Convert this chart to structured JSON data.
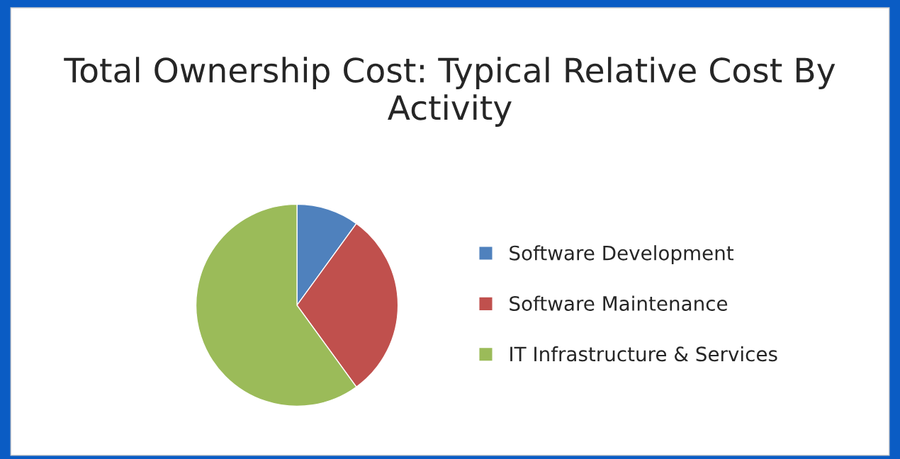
{
  "chart_data": {
    "type": "pie",
    "title": "Total Ownership Cost: Typical Relative Cost By Activity",
    "categories": [
      "Software Development",
      "Software Maintenance",
      "IT Infrastructure & Services"
    ],
    "values": [
      10,
      30,
      60
    ],
    "colors": [
      "#4f81bd",
      "#c0504d",
      "#9bbb59"
    ],
    "legend": "right"
  }
}
